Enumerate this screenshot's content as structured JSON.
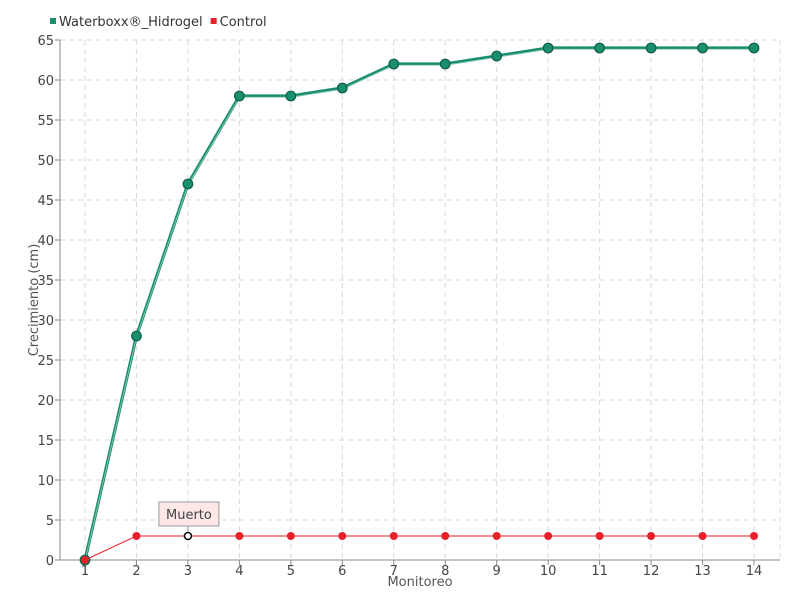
{
  "chart_data": {
    "type": "line",
    "categories": [
      "1",
      "2",
      "3",
      "4",
      "5",
      "6",
      "7",
      "8",
      "9",
      "10",
      "11",
      "12",
      "13",
      "14"
    ],
    "xlabel": "Monitoreo",
    "ylabel": "Crecimiento (cm)",
    "ylim": [
      0,
      65
    ],
    "yticks": [
      0,
      5,
      10,
      15,
      20,
      25,
      30,
      35,
      40,
      45,
      50,
      55,
      60,
      65
    ],
    "grid": true,
    "legend_position": "top-left",
    "series": [
      {
        "name": "Waterboxx®_Hidrogel",
        "color": "#1a8f6e",
        "values": [
          0,
          28,
          47,
          58,
          58,
          59,
          62,
          62,
          63,
          64,
          64,
          64,
          64,
          64
        ]
      },
      {
        "name": "Control",
        "color": "#e8202a",
        "values": [
          0,
          3,
          3,
          3,
          3,
          3,
          3,
          3,
          3,
          3,
          3,
          3,
          3,
          3
        ]
      }
    ],
    "annotation": {
      "text": "Muerto",
      "series": "Control",
      "x": "3",
      "y": 3
    }
  }
}
